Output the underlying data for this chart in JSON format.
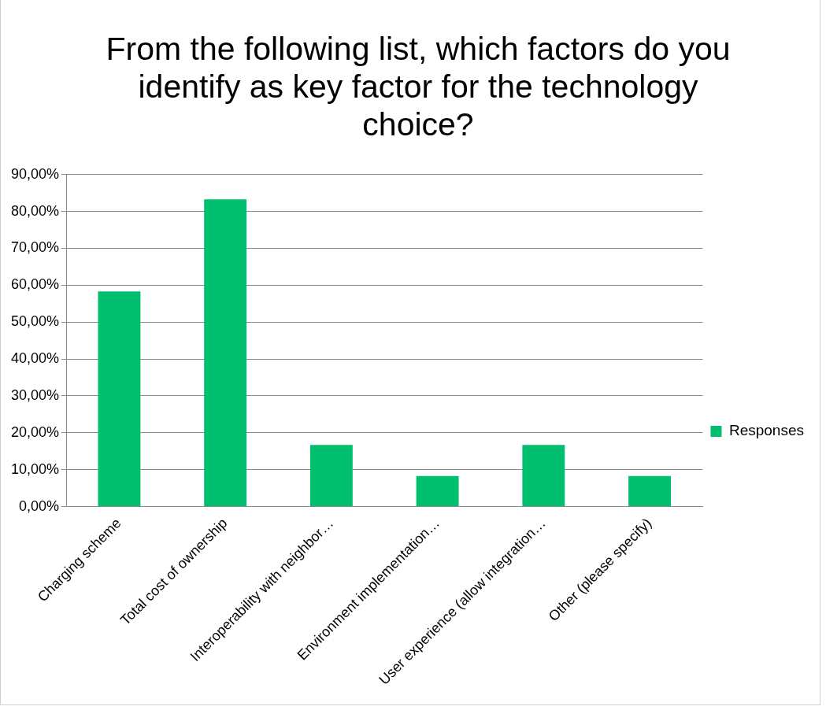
{
  "chart_data": {
    "type": "bar",
    "title": "From the following list, which factors do you identify as key factor for the technology choice?",
    "categories": [
      "Charging scheme",
      "Total cost of ownership",
      "Interoperability with neighbor…",
      "Environment implementation…",
      "User experience (allow integration…",
      "Other (please specify)"
    ],
    "series": [
      {
        "name": "Responses",
        "color": "#00bf6f",
        "values": [
          58.3,
          83.3,
          16.7,
          8.3,
          16.7,
          8.3
        ]
      }
    ],
    "ylim": [
      0,
      90
    ],
    "yticks": [
      {
        "value": 0,
        "label": "0,00%"
      },
      {
        "value": 10,
        "label": "10,00%"
      },
      {
        "value": 20,
        "label": "20,00%"
      },
      {
        "value": 30,
        "label": "30,00%"
      },
      {
        "value": 40,
        "label": "40,00%"
      },
      {
        "value": 50,
        "label": "50,00%"
      },
      {
        "value": 60,
        "label": "60,00%"
      },
      {
        "value": 70,
        "label": "70,00%"
      },
      {
        "value": 80,
        "label": "80,00%"
      },
      {
        "value": 90,
        "label": "90,00%"
      }
    ],
    "grid": "y",
    "legend": "right"
  }
}
